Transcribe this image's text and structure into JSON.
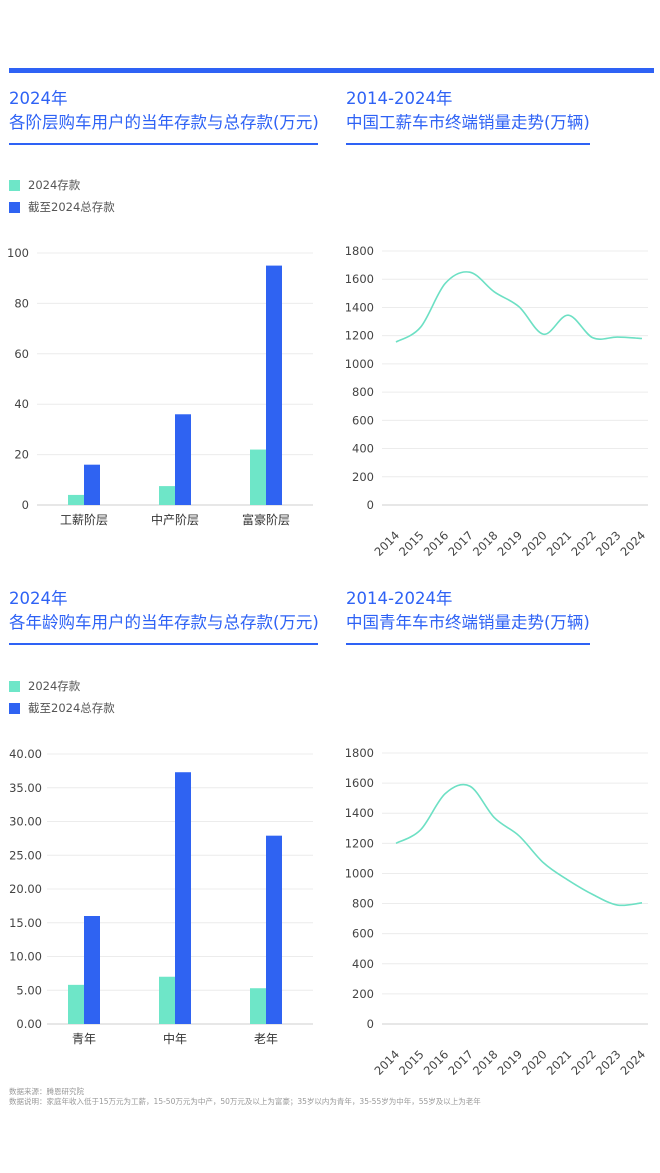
{
  "colors": {
    "accent": "#2e62f5",
    "light": "#6ee6c8",
    "bar_dark": "#2f63f2",
    "line": "#6de0c4"
  },
  "panels": {
    "top_left": {
      "title1": "2024年",
      "title2": "各阶层购车用户的当年存款与总存款(万元)"
    },
    "top_right": {
      "title1": "2014-2024年",
      "title2": "中国工薪车市终端销量走势(万辆)"
    },
    "bottom_left": {
      "title1": "2024年",
      "title2": "各年龄购车用户的当年存款与总存款(万元)"
    },
    "bottom_right": {
      "title1": "2014-2024年",
      "title2": "中国青年车市终端销量走势(万辆)"
    }
  },
  "legend": {
    "s1": "2024存款",
    "s2": "截至2024总存款"
  },
  "chart_data": [
    {
      "type": "bar",
      "categories": [
        "工薪阶层",
        "中产阶层",
        "富豪阶层"
      ],
      "series": [
        {
          "name": "2024存款",
          "values": [
            4,
            7.5,
            22
          ]
        },
        {
          "name": "截至2024总存款",
          "values": [
            16,
            36,
            95
          ]
        }
      ],
      "ylim": [
        0,
        100
      ],
      "yticks": [
        "0",
        "20",
        "40",
        "60",
        "80",
        "100"
      ],
      "ytick_values": [
        0,
        20,
        40,
        60,
        80,
        100
      ]
    },
    {
      "type": "line",
      "x": [
        "2014",
        "2015",
        "2016",
        "2017",
        "2018",
        "2019",
        "2020",
        "2021",
        "2022",
        "2023",
        "2024"
      ],
      "values": [
        1155,
        1260,
        1570,
        1650,
        1510,
        1405,
        1210,
        1345,
        1185,
        1190,
        1180
      ],
      "ylim": [
        0,
        1800
      ],
      "yticks": [
        "0",
        "200",
        "400",
        "600",
        "800",
        "1000",
        "1200",
        "1400",
        "1600",
        "1800"
      ],
      "ytick_values": [
        0,
        200,
        400,
        600,
        800,
        1000,
        1200,
        1400,
        1600,
        1800
      ]
    },
    {
      "type": "bar",
      "categories": [
        "青年",
        "中年",
        "老年"
      ],
      "series": [
        {
          "name": "2024存款",
          "values": [
            5.8,
            7.0,
            5.3
          ]
        },
        {
          "name": "截至2024总存款",
          "values": [
            16,
            37.3,
            27.9
          ]
        }
      ],
      "ylim": [
        0,
        40
      ],
      "yticks": [
        "0.00",
        "5.00",
        "10.00",
        "15.00",
        "20.00",
        "25.00",
        "30.00",
        "35.00",
        "40.00"
      ],
      "ytick_values": [
        0,
        5,
        10,
        15,
        20,
        25,
        30,
        35,
        40
      ]
    },
    {
      "type": "line",
      "x": [
        "2014",
        "2015",
        "2016",
        "2017",
        "2018",
        "2019",
        "2020",
        "2021",
        "2022",
        "2023",
        "2024"
      ],
      "values": [
        1200,
        1290,
        1530,
        1580,
        1370,
        1250,
        1070,
        955,
        860,
        790,
        805
      ],
      "ylim": [
        0,
        1800
      ],
      "yticks": [
        "0",
        "200",
        "400",
        "600",
        "800",
        "1000",
        "1200",
        "1400",
        "1600",
        "1800"
      ],
      "ytick_values": [
        0,
        200,
        400,
        600,
        800,
        1000,
        1200,
        1400,
        1600,
        1800
      ]
    }
  ],
  "footer": {
    "line1": "数据来源：腾恩研究院",
    "line2": "数据说明：家庭年收入低于15万元为工薪，15-50万元为中产，50万元及以上为富豪；35岁以内为青年，35-55岁为中年，55岁及以上为老年"
  }
}
